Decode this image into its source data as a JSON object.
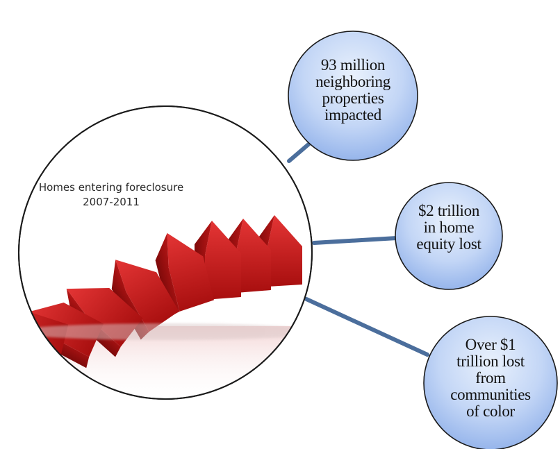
{
  "main_circle": {
    "caption_line1": "Homes entering foreclosure",
    "caption_line2": "2007-2011",
    "image": "red-house-dominoes-falling"
  },
  "bubbles": [
    {
      "lines": [
        "93 million",
        "neighboring",
        "properties",
        "impacted"
      ]
    },
    {
      "lines": [
        "$2 trillion",
        "in home",
        "equity lost"
      ]
    },
    {
      "lines": [
        "Over $1",
        "trillion lost",
        "from",
        "communities",
        "of color"
      ]
    }
  ],
  "colors": {
    "bubble_top": "#e4eefb",
    "bubble_bottom": "#8fb1ec",
    "bubble_border": "#1a1a1a",
    "connector": "#4b6e9c",
    "house_red": "#cf1f1f"
  }
}
